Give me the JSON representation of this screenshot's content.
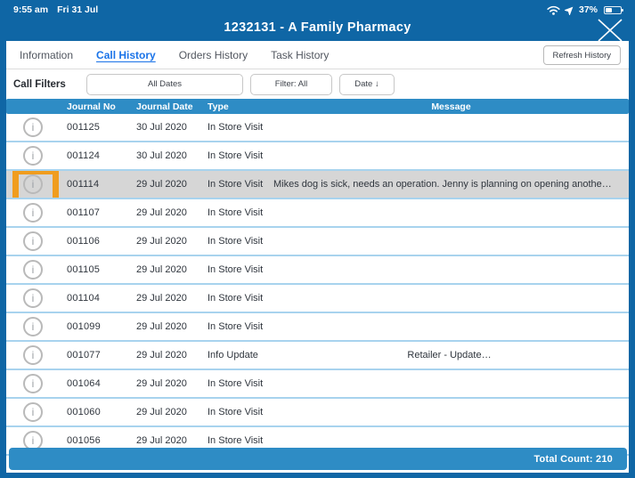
{
  "status_bar": {
    "time": "9:55 am",
    "date": "Fri 31 Jul",
    "battery_percent": "37%",
    "battery_level": 0.37
  },
  "title_bar": {
    "title": "1232131 - A Family Pharmacy"
  },
  "tabs": [
    {
      "label": "Information",
      "active": false
    },
    {
      "label": "Call History",
      "active": true
    },
    {
      "label": "Orders History",
      "active": false
    },
    {
      "label": "Task History",
      "active": false
    }
  ],
  "refresh_button_label": "Refresh History",
  "filters": {
    "label": "Call Filters",
    "date_range_button": "All Dates",
    "filter_button": "Filter: All",
    "sort_button": "Date ↓"
  },
  "table": {
    "columns": [
      "Journal No",
      "Journal Date",
      "Type",
      "Message"
    ],
    "rows": [
      {
        "journal_no": "001125",
        "journal_date": "30 Jul 2020",
        "type": "In Store Visit",
        "message": ""
      },
      {
        "journal_no": "001124",
        "journal_date": "30 Jul 2020",
        "type": "In Store Visit",
        "message": ""
      },
      {
        "journal_no": "001114",
        "journal_date": "29 Jul 2020",
        "type": "In Store Visit",
        "message": "Mikes dog is sick, needs an operation.  Jenny is planning on opening anothe…",
        "highlighted": true,
        "annotated": true
      },
      {
        "journal_no": "001107",
        "journal_date": "29 Jul 2020",
        "type": "In Store Visit",
        "message": ""
      },
      {
        "journal_no": "001106",
        "journal_date": "29 Jul 2020",
        "type": "In Store Visit",
        "message": ""
      },
      {
        "journal_no": "001105",
        "journal_date": "29 Jul 2020",
        "type": "In Store Visit",
        "message": ""
      },
      {
        "journal_no": "001104",
        "journal_date": "29 Jul 2020",
        "type": "In Store Visit",
        "message": ""
      },
      {
        "journal_no": "001099",
        "journal_date": "29 Jul 2020",
        "type": "In Store Visit",
        "message": ""
      },
      {
        "journal_no": "001077",
        "journal_date": "29 Jul 2020",
        "type": "Info Update",
        "message": "Retailer - Update…",
        "message_centered": true
      },
      {
        "journal_no": "001064",
        "journal_date": "29 Jul 2020",
        "type": "In Store Visit",
        "message": ""
      },
      {
        "journal_no": "001060",
        "journal_date": "29 Jul 2020",
        "type": "In Store Visit",
        "message": ""
      },
      {
        "journal_no": "001056",
        "journal_date": "29 Jul 2020",
        "type": "In Store Visit",
        "message": ""
      }
    ]
  },
  "footer": {
    "total_count": "Total Count: 210"
  },
  "colors": {
    "frame_blue": "#0f66a5",
    "bar_blue": "#2e8cc5",
    "active_tab_blue": "#1a73e8",
    "row_separator": "#a8d3ee",
    "highlight_row_gray": "#d6d6d6",
    "annotation_orange": "#f09d1f"
  }
}
